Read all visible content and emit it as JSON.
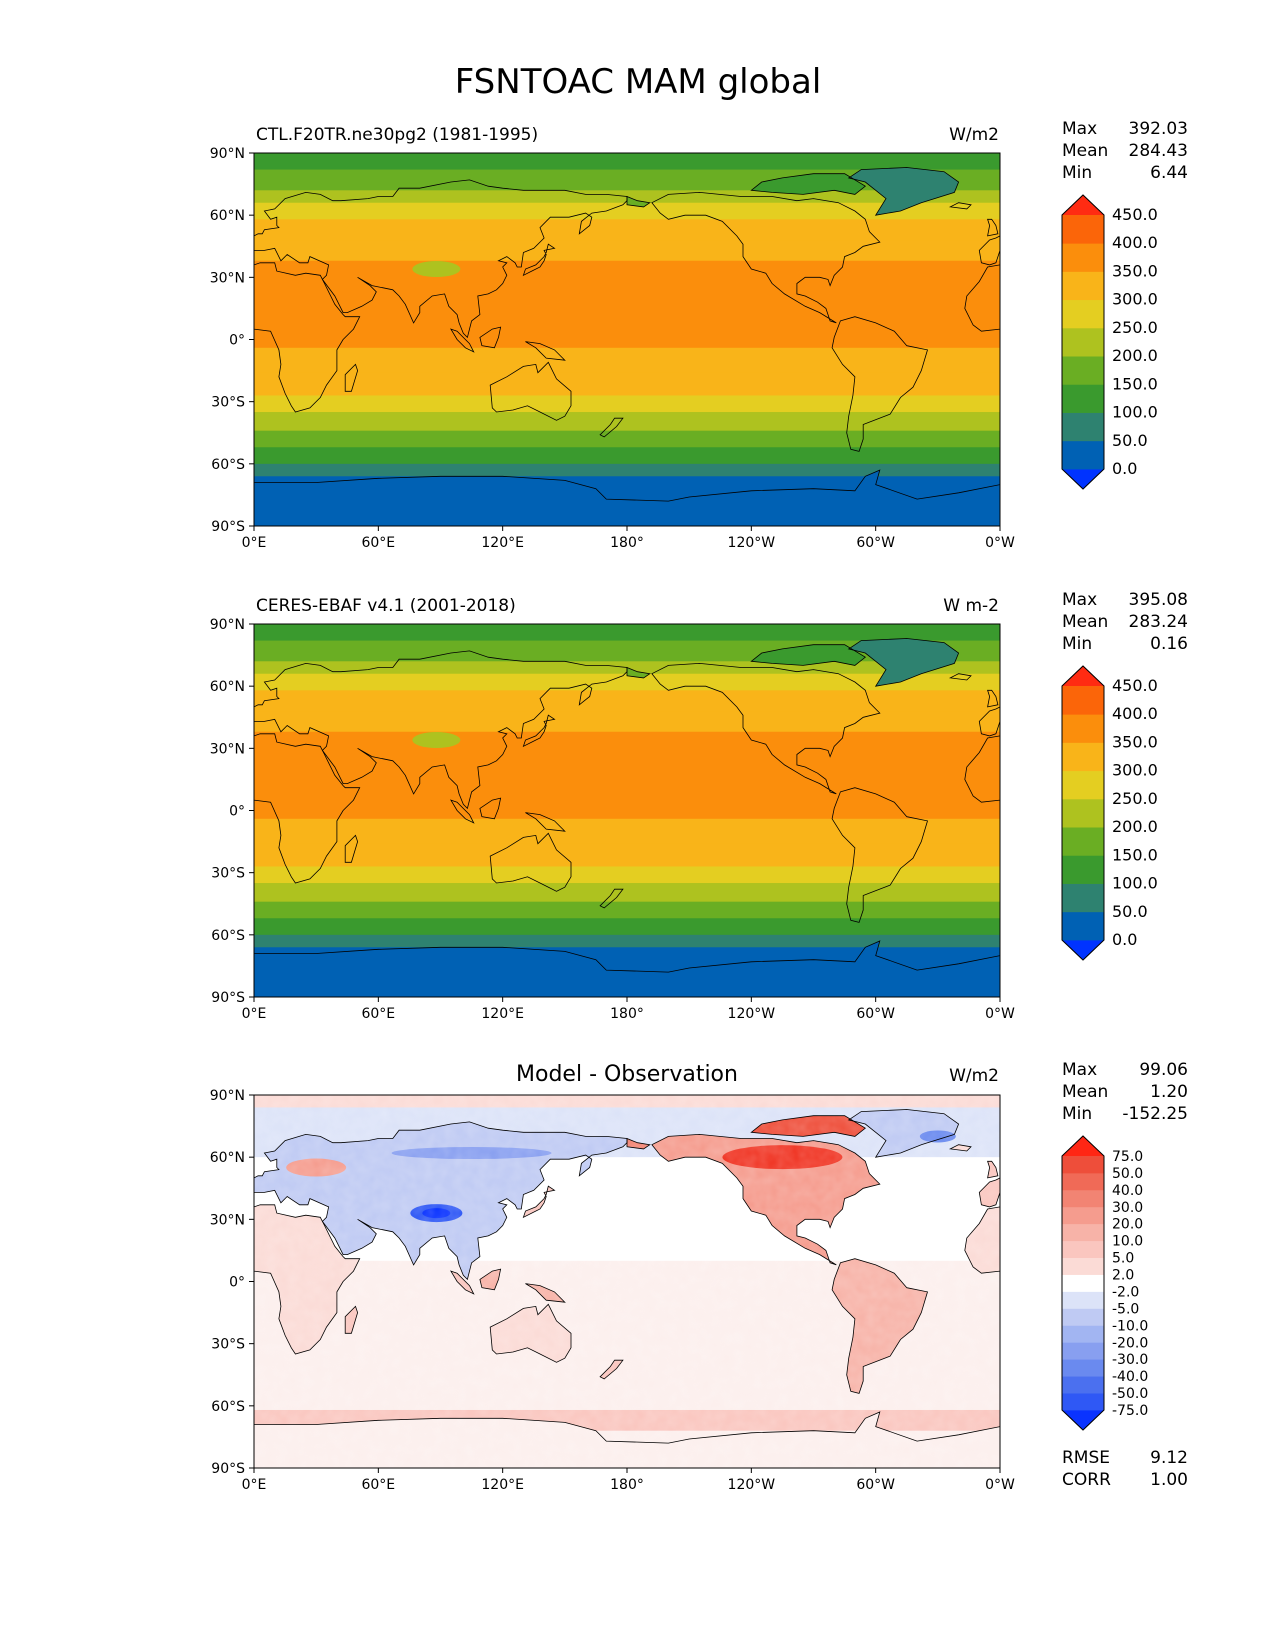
{
  "figure_title": "FSNTOAC MAM global",
  "longitude_ticks": [
    "0°E",
    "60°E",
    "120°E",
    "180°",
    "120°W",
    "60°W",
    "0°W"
  ],
  "latitude_ticks": [
    "90°N",
    "60°N",
    "30°N",
    "0°",
    "30°S",
    "60°S",
    "90°S"
  ],
  "colors": {
    "main_levels": [
      "#0033ff",
      "#0061b4",
      "#2e8270",
      "#3a9a2e",
      "#6aae23",
      "#aec21f",
      "#e4ce21",
      "#f9b419",
      "#fb8e0c",
      "#fb6509",
      "#ff2b12"
    ],
    "diff_levels": [
      "#0a33ff",
      "#2f58f5",
      "#4b70ef",
      "#6a8aef",
      "#889ff0",
      "#a2b5f2",
      "#bfcaf3",
      "#dce3f8",
      "#eef0fb",
      "#ffffff",
      "#fcefed",
      "#fbdbd6",
      "#fac6bf",
      "#f7b3a8",
      "#f59c8e",
      "#f28473",
      "#f06a57",
      "#ee4e3a",
      "#f03524",
      "#ff2614"
    ],
    "coast": "#000000"
  },
  "chart_data": [
    {
      "type": "heatmap",
      "left_title": "CTL.F20TR.ne30pg2 (1981-1995)",
      "units": "W/m2",
      "stats": {
        "max_label": "Max",
        "max": "392.03",
        "mean_label": "Mean",
        "mean": "284.43",
        "min_label": "Min",
        "min": "6.44"
      },
      "colorbar_levels": [
        "0.0",
        "50.0",
        "100.0",
        "150.0",
        "200.0",
        "250.0",
        "300.0",
        "350.0",
        "400.0",
        "450.0"
      ],
      "xlim": [
        0,
        360
      ],
      "ylim": [
        -90,
        90
      ]
    },
    {
      "type": "heatmap",
      "left_title": "CERES-EBAF v4.1 (2001-2018)",
      "units": "W m-2",
      "stats": {
        "max_label": "Max",
        "max": "395.08",
        "mean_label": "Mean",
        "mean": "283.24",
        "min_label": "Min",
        "min": "0.16"
      },
      "colorbar_levels": [
        "0.0",
        "50.0",
        "100.0",
        "150.0",
        "200.0",
        "250.0",
        "300.0",
        "350.0",
        "400.0",
        "450.0"
      ],
      "xlim": [
        0,
        360
      ],
      "ylim": [
        -90,
        90
      ]
    },
    {
      "type": "heatmap",
      "center_title": "Model - Observation",
      "units": "W/m2",
      "stats": {
        "max_label": "Max",
        "max": "99.06",
        "mean_label": "Mean",
        "mean": "1.20",
        "min_label": "Min",
        "min": "-152.25"
      },
      "colorbar_levels": [
        "-75.0",
        "-50.0",
        "-40.0",
        "-30.0",
        "-20.0",
        "-10.0",
        "-5.0",
        "-2.0",
        "2.0",
        "5.0",
        "10.0",
        "20.0",
        "30.0",
        "40.0",
        "50.0",
        "75.0"
      ],
      "error_stats": {
        "rmse_label": "RMSE",
        "rmse": "9.12",
        "corr_label": "CORR",
        "corr": "1.00"
      },
      "xlim": [
        0,
        360
      ],
      "ylim": [
        -90,
        90
      ]
    }
  ]
}
